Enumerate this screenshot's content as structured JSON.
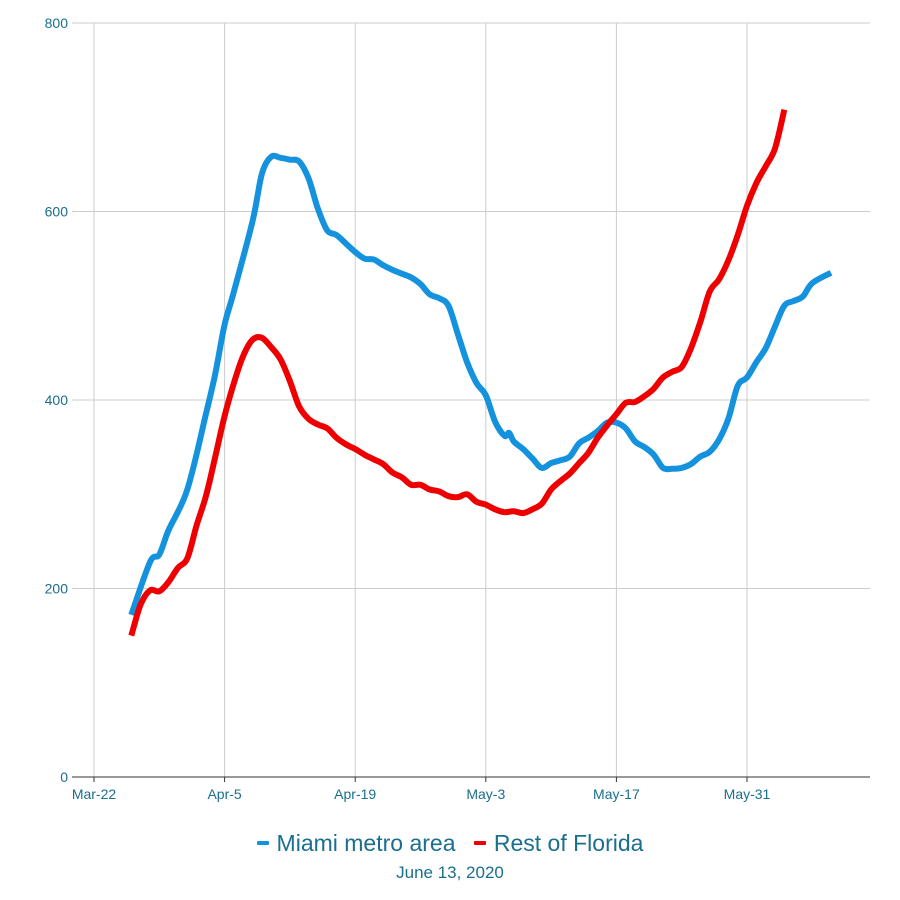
{
  "chart_data": {
    "type": "line",
    "title": "",
    "xlabel": "",
    "ylabel": "",
    "ylim": [
      0,
      800
    ],
    "yticks": [
      0,
      200,
      400,
      600,
      800
    ],
    "xlim_days": [
      0,
      82
    ],
    "x_ticks": [
      {
        "label": "Mar-22",
        "day": 0
      },
      {
        "label": "Apr-5",
        "day": 14
      },
      {
        "label": "Apr-19",
        "day": 28
      },
      {
        "label": "May-3",
        "day": 42
      },
      {
        "label": "May-17",
        "day": 56
      },
      {
        "label": "May-31",
        "day": 70
      }
    ],
    "x_unit": "days since Mar-22",
    "series": [
      {
        "name": "Miami metro area",
        "color": "#1592dd",
        "points": [
          [
            4,
            172
          ],
          [
            6,
            228
          ],
          [
            7,
            236
          ],
          [
            8,
            262
          ],
          [
            10,
            305
          ],
          [
            12,
            385
          ],
          [
            13,
            428
          ],
          [
            14,
            480
          ],
          [
            15,
            515
          ],
          [
            17,
            590
          ],
          [
            18,
            640
          ],
          [
            19,
            658
          ],
          [
            20,
            657
          ],
          [
            21,
            655
          ],
          [
            22,
            653
          ],
          [
            23,
            635
          ],
          [
            24,
            603
          ],
          [
            25,
            580
          ],
          [
            26,
            575
          ],
          [
            27,
            566
          ],
          [
            28,
            557
          ],
          [
            29,
            550
          ],
          [
            30,
            549
          ],
          [
            31,
            543
          ],
          [
            32,
            538
          ],
          [
            33,
            534
          ],
          [
            34,
            530
          ],
          [
            35,
            523
          ],
          [
            36,
            512
          ],
          [
            37,
            508
          ],
          [
            38,
            500
          ],
          [
            39,
            470
          ],
          [
            40,
            440
          ],
          [
            41,
            418
          ],
          [
            42,
            405
          ],
          [
            43,
            377
          ],
          [
            44,
            362
          ],
          [
            44.5,
            365
          ],
          [
            45,
            356
          ],
          [
            46,
            348
          ],
          [
            47,
            338
          ],
          [
            48,
            328
          ],
          [
            49,
            333
          ],
          [
            50,
            336
          ],
          [
            51,
            340
          ],
          [
            52,
            354
          ],
          [
            53,
            360
          ],
          [
            54,
            367
          ],
          [
            55,
            376
          ],
          [
            56,
            376
          ],
          [
            57,
            370
          ],
          [
            58,
            356
          ],
          [
            59,
            350
          ],
          [
            60,
            342
          ],
          [
            61,
            328
          ],
          [
            62,
            327
          ],
          [
            63,
            328
          ],
          [
            64,
            332
          ],
          [
            65,
            340
          ],
          [
            66,
            345
          ],
          [
            67,
            358
          ],
          [
            68,
            380
          ],
          [
            69,
            415
          ],
          [
            70,
            424
          ],
          [
            71,
            440
          ],
          [
            72,
            455
          ],
          [
            73,
            478
          ],
          [
            74,
            500
          ],
          [
            75,
            505
          ],
          [
            76,
            510
          ],
          [
            77,
            524
          ],
          [
            79,
            535
          ]
        ]
      },
      {
        "name": "Rest of Florida",
        "color": "#ee0000",
        "points": [
          [
            4,
            150
          ],
          [
            5,
            183
          ],
          [
            6,
            198
          ],
          [
            7,
            197
          ],
          [
            8,
            207
          ],
          [
            9,
            222
          ],
          [
            10,
            232
          ],
          [
            11,
            267
          ],
          [
            12,
            298
          ],
          [
            13,
            340
          ],
          [
            14,
            383
          ],
          [
            15,
            418
          ],
          [
            16,
            447
          ],
          [
            17,
            464
          ],
          [
            18,
            466
          ],
          [
            19,
            456
          ],
          [
            20,
            443
          ],
          [
            21,
            420
          ],
          [
            22,
            393
          ],
          [
            23,
            380
          ],
          [
            24,
            374
          ],
          [
            25,
            370
          ],
          [
            26,
            360
          ],
          [
            27,
            353
          ],
          [
            28,
            348
          ],
          [
            29,
            342
          ],
          [
            30,
            337
          ],
          [
            31,
            332
          ],
          [
            32,
            323
          ],
          [
            33,
            318
          ],
          [
            34,
            310
          ],
          [
            35,
            310
          ],
          [
            36,
            305
          ],
          [
            37,
            303
          ],
          [
            38,
            298
          ],
          [
            39,
            297
          ],
          [
            40,
            300
          ],
          [
            41,
            292
          ],
          [
            42,
            289
          ],
          [
            43,
            284
          ],
          [
            44,
            281
          ],
          [
            45,
            282
          ],
          [
            46,
            280
          ],
          [
            47,
            284
          ],
          [
            48,
            290
          ],
          [
            49,
            305
          ],
          [
            50,
            314
          ],
          [
            51,
            322
          ],
          [
            52,
            333
          ],
          [
            53,
            344
          ],
          [
            54,
            360
          ],
          [
            55,
            373
          ],
          [
            56,
            385
          ],
          [
            57,
            397
          ],
          [
            58,
            398
          ],
          [
            59,
            404
          ],
          [
            60,
            412
          ],
          [
            61,
            424
          ],
          [
            62,
            430
          ],
          [
            63,
            435
          ],
          [
            64,
            455
          ],
          [
            65,
            483
          ],
          [
            66,
            515
          ],
          [
            67,
            528
          ],
          [
            68,
            548
          ],
          [
            69,
            575
          ],
          [
            70,
            606
          ],
          [
            71,
            630
          ],
          [
            72,
            648
          ],
          [
            73,
            667
          ],
          [
            74,
            708
          ]
        ]
      }
    ],
    "legend": {
      "position": "bottom-center"
    },
    "caption": "June 13, 2020",
    "grid": true
  }
}
